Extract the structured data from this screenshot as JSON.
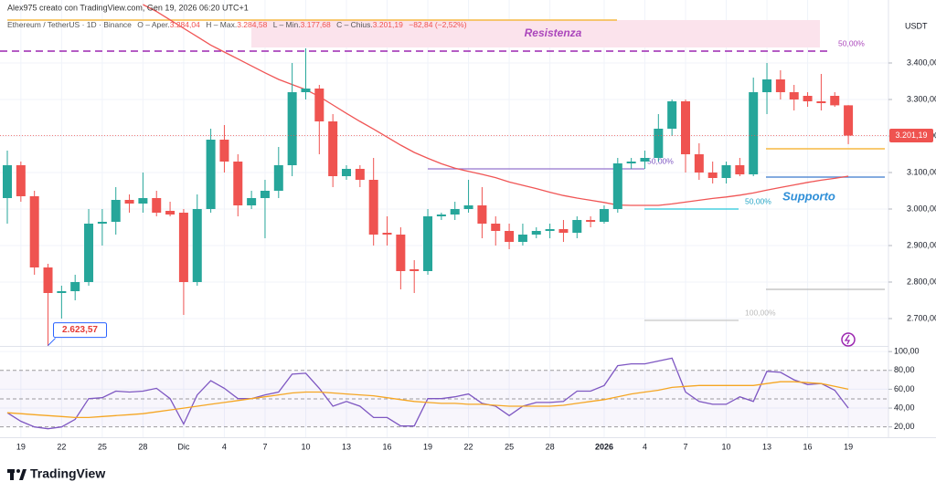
{
  "header": "Alex975 creato con TradingView.com, Gen 19, 2026 06:20 UTC+1",
  "legend": {
    "symbol": "Ethereum / TetherUS · 1D · Binance",
    "open_label": "O – Aper.",
    "open": "3.284,04",
    "high_label": "H – Max.",
    "high": "3.284,58",
    "low_label": "L – Min.",
    "low": "3.177,68",
    "close_label": "C – Chius.",
    "close": "3.201,19",
    "change": "−82,84 (−2,52%)"
  },
  "currency": "USDT",
  "annotations": {
    "resistance": "Resistenza",
    "support": "Supporto",
    "fib_top": "50,00%",
    "fib_mid": "50,00%",
    "fib_low": "50,00%",
    "fib_full": "100,00%"
  },
  "footer_brand": "TradingView",
  "chart_data": [
    {
      "type": "candlestick",
      "categories": [
        null,
        "19",
        null,
        null,
        "22",
        null,
        null,
        "25",
        null,
        null,
        "28",
        null,
        null,
        "Dic",
        null,
        null,
        "4",
        null,
        null,
        "7",
        null,
        null,
        "10",
        null,
        null,
        "13",
        null,
        null,
        "16",
        null,
        null,
        "19",
        null,
        null,
        "22",
        null,
        null,
        "25",
        null,
        null,
        "28",
        null,
        null,
        null,
        "2026",
        null,
        null,
        "4",
        null,
        null,
        "7",
        null,
        null,
        "10",
        null,
        null,
        "13",
        null,
        null,
        "16",
        null,
        null,
        "19"
      ],
      "open": [
        3030,
        3120,
        3035,
        2840,
        2770,
        2775,
        2800,
        2960,
        2965,
        3025,
        3015,
        3030,
        2995,
        2990,
        2800,
        3000,
        3190,
        3130,
        3010,
        3030,
        3050,
        3120,
        3320,
        3330,
        3240,
        3090,
        3110,
        3080,
        2935,
        2930,
        2835,
        2830,
        2980,
        2985,
        3000,
        3010,
        2960,
        2940,
        2910,
        2930,
        2940,
        2945,
        2935,
        2970,
        2965,
        3000,
        3125,
        3130,
        3140,
        3220,
        3295,
        3150,
        3100,
        3085,
        3120,
        3095,
        3320,
        3355,
        3320,
        3310,
        3295,
        3310,
        3284.04
      ],
      "high": [
        3160,
        3130,
        3050,
        2850,
        2790,
        2820,
        3000,
        3000,
        3060,
        3040,
        3100,
        3050,
        3020,
        3000,
        3040,
        3220,
        3230,
        3150,
        3050,
        3080,
        3170,
        3400,
        3440,
        3340,
        3260,
        3120,
        3120,
        3140,
        2980,
        2950,
        2860,
        3000,
        2990,
        3020,
        3080,
        3060,
        2980,
        2960,
        2960,
        2950,
        2960,
        2970,
        2980,
        2980,
        3010,
        3140,
        3140,
        3160,
        3260,
        3300,
        3300,
        3180,
        3130,
        3130,
        3140,
        3360,
        3400,
        3380,
        3340,
        3320,
        3370,
        3320,
        3284.58
      ],
      "low": [
        2960,
        3020,
        2820,
        2623.57,
        2700,
        2750,
        2790,
        2900,
        2930,
        2990,
        2990,
        2980,
        2980,
        2710,
        2790,
        2990,
        3100,
        2980,
        3000,
        2920,
        3030,
        3090,
        3300,
        3150,
        3060,
        3080,
        3060,
        2900,
        2900,
        2780,
        2770,
        2820,
        2970,
        2970,
        2990,
        2920,
        2900,
        2890,
        2900,
        2920,
        2920,
        2910,
        2920,
        2950,
        2960,
        2990,
        3110,
        3110,
        3130,
        3200,
        3100,
        3080,
        3070,
        3070,
        3090,
        3090,
        3260,
        3300,
        3270,
        3280,
        3270,
        3280,
        3177.68
      ],
      "close": [
        3120,
        3035,
        2840,
        2770,
        2775,
        2800,
        2960,
        2965,
        3025,
        3015,
        3030,
        2990,
        2985,
        2800,
        3000,
        3190,
        3130,
        3010,
        3030,
        3050,
        3120,
        3320,
        3330,
        3240,
        3090,
        3110,
        3080,
        2930,
        2930,
        2830,
        2830,
        2980,
        2985,
        3000,
        3010,
        2960,
        2940,
        2910,
        2930,
        2940,
        2945,
        2935,
        2970,
        2965,
        3000,
        3125,
        3130,
        3140,
        3220,
        3295,
        3150,
        3100,
        3085,
        3120,
        3095,
        3320,
        3355,
        3320,
        3300,
        3295,
        3290,
        3284.04,
        3201.19
      ],
      "up_color": "#26a69a",
      "down_color": "#ef5350",
      "low_label": "2.623,57",
      "last_price_label": "3.201,19",
      "series": [
        {
          "name": "MA",
          "color": "#f05555",
          "values": [
            null,
            null,
            null,
            null,
            null,
            null,
            null,
            null,
            null,
            null,
            3560,
            3541,
            3518,
            3495,
            3472,
            3449,
            3430,
            3411,
            3392,
            3373,
            3355,
            3341,
            3327,
            3308,
            3285,
            3262,
            3240,
            3219,
            3197,
            3175,
            3155,
            3139,
            3124,
            3112,
            3103,
            3095,
            3086,
            3074,
            3065,
            3056,
            3046,
            3037,
            3030,
            3024,
            3018,
            3011,
            3010,
            3010,
            3010,
            3014,
            3019,
            3024,
            3029,
            3033,
            3038,
            3044,
            3052,
            3059,
            3066,
            3073,
            3079,
            3084,
            3090
          ]
        }
      ],
      "ylim": [
        2620,
        3550
      ],
      "yticks": [
        {
          "value": 2700,
          "label": "2.700,00"
        },
        {
          "value": 2800,
          "label": "2.800,00"
        },
        {
          "value": 2900,
          "label": "2.900,00"
        },
        {
          "value": 3000,
          "label": "3.000,00"
        },
        {
          "value": 3100,
          "label": "3.100,00"
        },
        {
          "value": 3200,
          "label": "3.200,00"
        },
        {
          "value": 3300,
          "label": "3.300,00"
        },
        {
          "value": 3400,
          "label": "3.400,00"
        }
      ],
      "grid": true
    },
    {
      "type": "line",
      "series": [
        {
          "name": "RSI",
          "color": "#7e57c2",
          "values": [
            35,
            26,
            20,
            18,
            20,
            28,
            50,
            51,
            58,
            57,
            58,
            61,
            50,
            23,
            54,
            69,
            61,
            50,
            50,
            54,
            57,
            76,
            77,
            61,
            42,
            47,
            42,
            30,
            30,
            21,
            21,
            50,
            50,
            52,
            55,
            45,
            42,
            32,
            42,
            46,
            46,
            47,
            58,
            58,
            64,
            85,
            87,
            87,
            90,
            93,
            57,
            47,
            44,
            44,
            52,
            47,
            79,
            78,
            70,
            65,
            66,
            59,
            40
          ]
        },
        {
          "name": "RSI MA",
          "color": "#f5a623",
          "values": [
            35,
            34,
            33,
            32,
            31,
            30,
            30,
            31,
            32,
            33,
            34,
            36,
            38,
            40,
            42,
            44,
            46,
            48,
            50,
            52,
            54,
            56,
            57,
            57,
            56,
            55,
            54,
            53,
            51,
            49,
            47,
            46,
            45,
            45,
            44,
            44,
            43,
            42,
            42,
            42,
            42,
            43,
            45,
            47,
            49,
            52,
            55,
            57,
            59,
            62,
            63,
            64,
            64,
            64,
            64,
            64,
            66,
            68,
            68,
            67,
            66,
            63,
            60
          ]
        }
      ],
      "ylim": [
        10,
        105
      ],
      "yticks": [
        {
          "value": 20,
          "label": "20,00"
        },
        {
          "value": 40,
          "label": "40,00"
        },
        {
          "value": 60,
          "label": "60,00"
        },
        {
          "value": 80,
          "label": "80,00"
        },
        {
          "value": 100,
          "label": "100,00"
        }
      ],
      "grid": true
    }
  ]
}
